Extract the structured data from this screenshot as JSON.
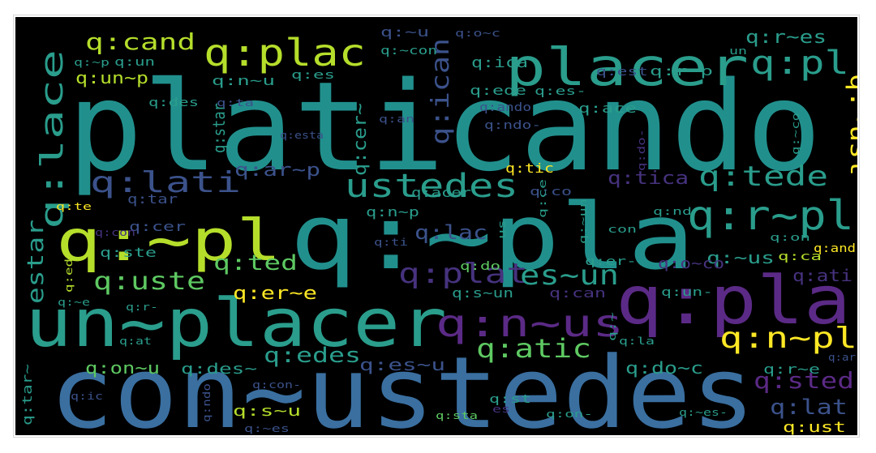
{
  "palette": {
    "teal": "#2a9d8c",
    "tealDark": "#21908d",
    "blue": "#3a6fa0",
    "blueDeep": "#355f8d",
    "green": "#5ec962",
    "lime": "#b5de2b",
    "yellow": "#fde725",
    "purple": "#5b2a86",
    "indigo": "#46327e",
    "slate": "#3b528b"
  },
  "words": [
    {
      "text": "platicando",
      "color": "tealDark"
    },
    {
      "text": "con~ustedes",
      "color": "blue"
    },
    {
      "text": "q:~pla",
      "color": "tealDark"
    },
    {
      "text": "un~placer",
      "color": "teal"
    },
    {
      "text": "q:pla",
      "color": "purple"
    },
    {
      "text": "placer",
      "color": "teal"
    },
    {
      "text": "q:~pl",
      "color": "lime"
    },
    {
      "text": "q:plac",
      "color": "lime"
    },
    {
      "text": "q:r~pl",
      "color": "teal"
    },
    {
      "text": "q:pl",
      "color": "teal"
    },
    {
      "text": "q:lace",
      "color": "teal"
    },
    {
      "text": "q:lati",
      "color": "slate"
    },
    {
      "text": "ustedes",
      "color": "teal"
    },
    {
      "text": "q:tede",
      "color": "teal"
    },
    {
      "text": "q:n~us",
      "color": "purple"
    },
    {
      "text": "q:n~pl",
      "color": "yellow"
    },
    {
      "text": "q:plat",
      "color": "indigo"
    },
    {
      "text": "es~un",
      "color": "teal"
    },
    {
      "text": "estar",
      "color": "teal"
    },
    {
      "text": "q:uste",
      "color": "green"
    },
    {
      "text": "q:ted",
      "color": "green"
    },
    {
      "text": "q:atic",
      "color": "green"
    },
    {
      "text": "q:edes",
      "color": "teal"
    },
    {
      "text": "q:sted",
      "color": "purple"
    },
    {
      "text": "q:lat",
      "color": "slate"
    },
    {
      "text": "q:ican",
      "color": "slate"
    },
    {
      "text": "q:cand",
      "color": "lime"
    },
    {
      "text": "q:~ust",
      "color": "yellow"
    },
    {
      "text": "q:lac",
      "color": "slate"
    },
    {
      "text": "q:tica",
      "color": "indigo"
    },
    {
      "text": "q:ar~p",
      "color": "slate"
    },
    {
      "text": "q:star",
      "color": "teal"
    },
    {
      "text": "q:cer~",
      "color": "teal"
    },
    {
      "text": "q:r~es",
      "color": "teal"
    },
    {
      "text": "q:un~p",
      "color": "lime"
    },
    {
      "text": "q:er~e",
      "color": "yellow"
    },
    {
      "text": "q:~us",
      "color": "teal"
    },
    {
      "text": "q:ati",
      "color": "indigo"
    },
    {
      "text": "q:on~u",
      "color": "green"
    },
    {
      "text": "q:des~",
      "color": "teal"
    },
    {
      "text": "q:es~u",
      "color": "slate"
    },
    {
      "text": "q:do~c",
      "color": "teal"
    },
    {
      "text": "q:r~e",
      "color": "teal"
    },
    {
      "text": "q:s~u",
      "color": "lime"
    },
    {
      "text": "q:ust",
      "color": "yellow"
    },
    {
      "text": "q:tar~",
      "color": "teal"
    },
    {
      "text": "q:o~co",
      "color": "indigo"
    },
    {
      "text": "q:tic",
      "color": "yellow"
    },
    {
      "text": "q:acer",
      "color": "teal"
    },
    {
      "text": "q:n~p",
      "color": "teal"
    },
    {
      "text": "q:ede",
      "color": "teal"
    },
    {
      "text": "q:ica",
      "color": "teal"
    },
    {
      "text": "q:r~p",
      "color": "teal"
    },
    {
      "text": "q:est",
      "color": "slate"
    },
    {
      "text": "q:ace",
      "color": "teal"
    },
    {
      "text": "q:ando",
      "color": "slate"
    },
    {
      "text": "q:ndo-",
      "color": "slate"
    },
    {
      "text": "q:s~un",
      "color": "teal"
    },
    {
      "text": "q:can",
      "color": "indigo"
    },
    {
      "text": "q:un-",
      "color": "teal"
    },
    {
      "text": "q:er-",
      "color": "teal"
    },
    {
      "text": "q:cer",
      "color": "slate"
    },
    {
      "text": "q:ste",
      "color": "teal"
    },
    {
      "text": "q:tar",
      "color": "slate"
    },
    {
      "text": "q:des",
      "color": "teal"
    },
    {
      "text": "q:n~u",
      "color": "teal"
    },
    {
      "text": "q:~u",
      "color": "slate"
    },
    {
      "text": "q:o~c",
      "color": "slate"
    },
    {
      "text": "q:~con",
      "color": "teal"
    },
    {
      "text": "q:es-",
      "color": "teal"
    },
    {
      "text": "q:es",
      "color": "teal"
    },
    {
      "text": "q:~p",
      "color": "teal"
    },
    {
      "text": "q:un",
      "color": "teal"
    },
    {
      "text": "q:ta",
      "color": "slate"
    },
    {
      "text": "q:an",
      "color": "slate"
    },
    {
      "text": "q:esta",
      "color": "slate"
    },
    {
      "text": "q:co",
      "color": "slate"
    },
    {
      "text": "q:te",
      "color": "yellow"
    },
    {
      "text": "q:con",
      "color": "indigo"
    },
    {
      "text": "q:do",
      "color": "green"
    },
    {
      "text": "q:ti",
      "color": "slate"
    },
    {
      "text": "q:ce",
      "color": "teal"
    },
    {
      "text": "q:nd",
      "color": "teal"
    },
    {
      "text": "con",
      "color": "teal"
    },
    {
      "text": "q:on",
      "color": "teal"
    },
    {
      "text": "q:ca",
      "color": "lime"
    },
    {
      "text": "q:and",
      "color": "yellow"
    },
    {
      "text": "q:ed",
      "color": "lime"
    },
    {
      "text": "q:~e",
      "color": "teal"
    },
    {
      "text": "q:r-",
      "color": "teal"
    },
    {
      "text": "q:at",
      "color": "teal"
    },
    {
      "text": "q:la",
      "color": "teal"
    },
    {
      "text": "q:ic",
      "color": "slate"
    },
    {
      "text": "q:con-",
      "color": "slate"
    },
    {
      "text": "q:ndo",
      "color": "slate"
    },
    {
      "text": "q:st",
      "color": "teal"
    },
    {
      "text": "q:sta",
      "color": "green"
    },
    {
      "text": "q:on-",
      "color": "teal"
    },
    {
      "text": "q:~es",
      "color": "slate"
    },
    {
      "text": "q:~es-",
      "color": "teal"
    },
    {
      "text": "es",
      "color": "indigo"
    },
    {
      "text": "us",
      "color": "teal"
    },
    {
      "text": "q:~un",
      "color": "teal"
    },
    {
      "text": "q:~co",
      "color": "teal"
    },
    {
      "text": "q:do-",
      "color": "indigo"
    },
    {
      "text": "un",
      "color": "teal"
    },
    {
      "text": "q:~",
      "color": "teal"
    },
    {
      "text": "q:ar",
      "color": "slate"
    }
  ]
}
